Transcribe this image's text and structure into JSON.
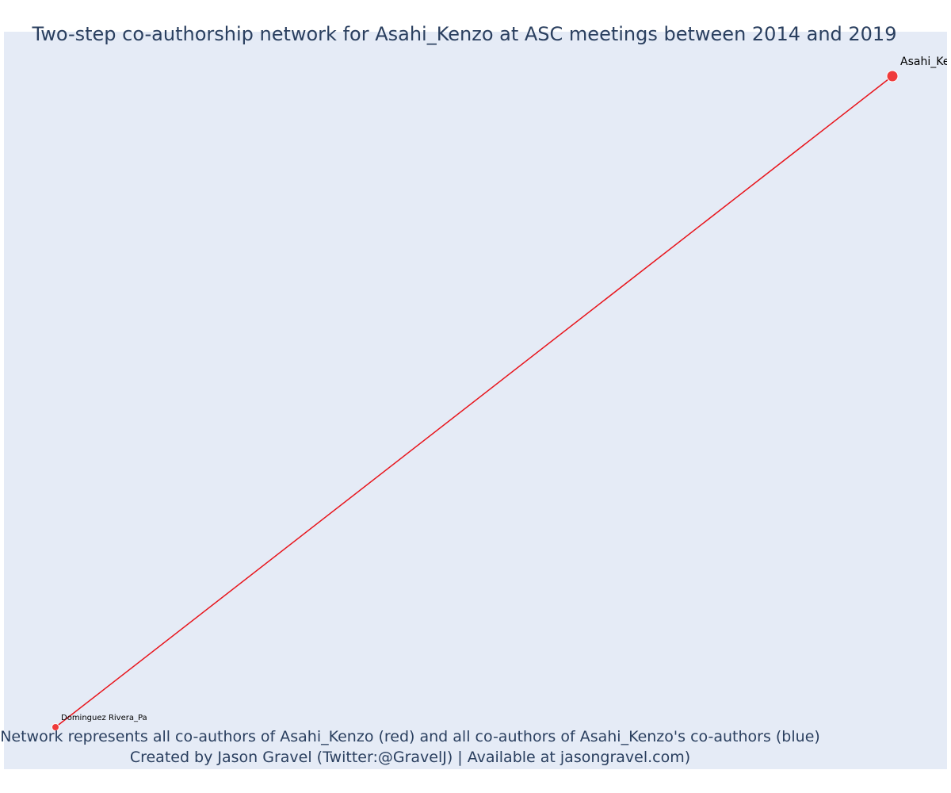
{
  "title": "Two-step co-authorship network for Asahi_Kenzo at ASC meetings between 2014 and 2019",
  "caption": {
    "line1": "Network represents all co-authors of Asahi_Kenzo (red) and all co-authors of Asahi_Kenzo's co-authors (blue)",
    "line2": "Created by Jason Gravel (Twitter:@GravelJ) | Available at jasongravel.com)"
  },
  "colors": {
    "plot_background": "#e5ebf6",
    "node_red": "#ef3b3b",
    "edge_red": "#e8141b",
    "node_outline": "#ffffff",
    "text": "#2a3f5f"
  },
  "network": {
    "nodes": [
      {
        "id": "asahi",
        "label": "Asahi_Kenzo",
        "group": "red",
        "role": "focal"
      },
      {
        "id": "dominguez",
        "label": "Dominguez Rivera_Pa",
        "group": "red",
        "role": "co-author"
      }
    ],
    "edges": [
      {
        "source": "asahi",
        "target": "dominguez",
        "color": "red"
      }
    ]
  }
}
